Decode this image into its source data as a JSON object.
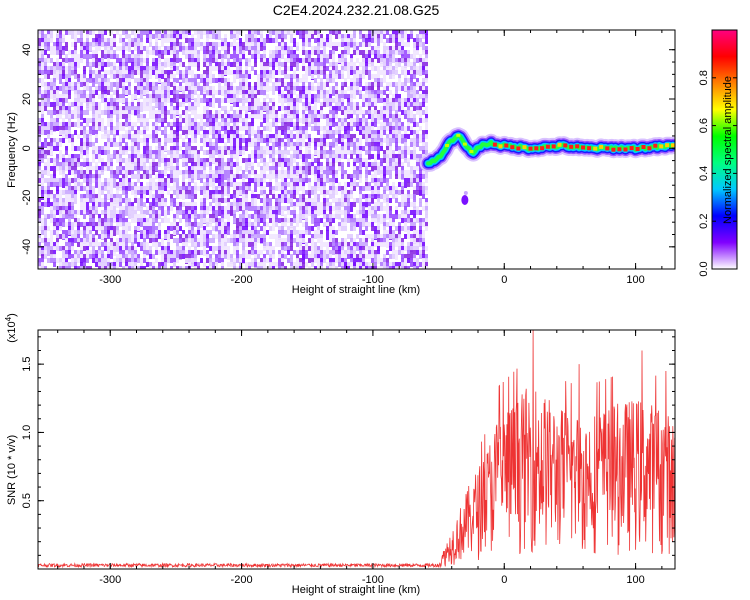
{
  "title": "C2E4.2024.232.21.08.G25",
  "chart_data": [
    {
      "type": "heatmap",
      "xlabel": "Height of straight line (km)",
      "ylabel": "Frequency (Hz)",
      "xlim": [
        -355,
        130
      ],
      "ylim": [
        -49,
        48
      ],
      "xticks": [
        "-300",
        "-200",
        "-100",
        "0",
        "100"
      ],
      "yticks": [
        "-40",
        "-20",
        "0",
        "20",
        "40"
      ],
      "colorbar": {
        "label": "Normalized spectral amplitude",
        "range": [
          0,
          1
        ],
        "ticks": [
          "0.0",
          "0.2",
          "0.4",
          "0.6",
          "0.8"
        ],
        "colors": [
          "#ffffff",
          "#8000ff",
          "#0000ff",
          "#00c8ff",
          "#00ff80",
          "#00ff00",
          "#ffff00",
          "#ff8000",
          "#ff0000",
          "#ff0080"
        ]
      },
      "noise_region_x": [
        -355,
        -60
      ],
      "signal_track": [
        {
          "x": -58,
          "y": -6
        },
        {
          "x": -50,
          "y": -4
        },
        {
          "x": -42,
          "y": 2
        },
        {
          "x": -35,
          "y": 5
        },
        {
          "x": -30,
          "y": 2
        },
        {
          "x": -25,
          "y": -2
        },
        {
          "x": -18,
          "y": 1
        },
        {
          "x": -10,
          "y": 2
        },
        {
          "x": 0,
          "y": 1
        },
        {
          "x": 20,
          "y": 0
        },
        {
          "x": 45,
          "y": 1
        },
        {
          "x": 60,
          "y": 0
        },
        {
          "x": 80,
          "y": 0
        },
        {
          "x": 100,
          "y": 0
        },
        {
          "x": 130,
          "y": 1
        }
      ],
      "blob": {
        "x": -30,
        "y": -21
      }
    },
    {
      "type": "line",
      "xlabel": "Height of straight line (km)",
      "ylabel": "SNR (10 * v/v)",
      "yscale_label": "(x10",
      "yscale_exp": "4",
      "xlim": [
        -355,
        130
      ],
      "ylim": [
        0,
        17500
      ],
      "xticks": [
        "-300",
        "-200",
        "-100",
        "0",
        "100"
      ],
      "yticks": [
        "0.5",
        "1.0",
        "1.5"
      ],
      "line_color": "#ee3333",
      "envelope": [
        {
          "x": -355,
          "y": 300
        },
        {
          "x": -50,
          "y": 300
        },
        {
          "x": -45,
          "y": 1500
        },
        {
          "x": -35,
          "y": 3500
        },
        {
          "x": -25,
          "y": 5500
        },
        {
          "x": -15,
          "y": 7000
        },
        {
          "x": -5,
          "y": 9500
        },
        {
          "x": 10,
          "y": 10500
        },
        {
          "x": 22,
          "y": 11500
        },
        {
          "x": 40,
          "y": 10000
        },
        {
          "x": 60,
          "y": 9500
        },
        {
          "x": 80,
          "y": 10000
        },
        {
          "x": 100,
          "y": 10500
        },
        {
          "x": 120,
          "y": 10000
        },
        {
          "x": 130,
          "y": 9000
        }
      ],
      "peaks": [
        {
          "x": 22,
          "y": 17500
        },
        {
          "x": 105,
          "y": 16000
        },
        {
          "x": 123,
          "y": 14500
        },
        {
          "x": 57,
          "y": 15000
        }
      ]
    }
  ]
}
